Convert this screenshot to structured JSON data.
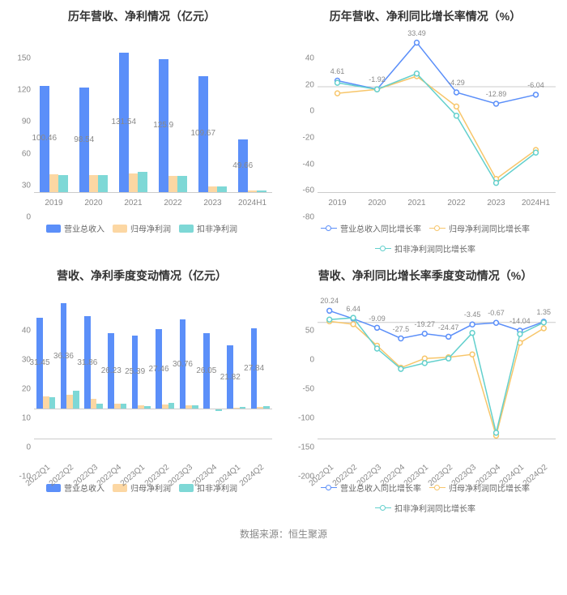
{
  "colors": {
    "blue": "#5b8ff9",
    "orange": "#fcd7a3",
    "teal": "#7ed8d6",
    "line_blue": "#5b8ff9",
    "line_orange": "#f7c66b",
    "line_teal": "#63d0cd",
    "grid": "#eeeeee",
    "axis": "#cccccc",
    "text_muted": "#888888"
  },
  "footer": "数据来源：恒生聚源",
  "chart1": {
    "type": "bar",
    "title": "历年营收、净利情况（亿元）",
    "ylim": [
      0,
      150
    ],
    "ytick_step": 30,
    "categories": [
      "2019",
      "2020",
      "2021",
      "2022",
      "2023",
      "2024H1"
    ],
    "series": [
      {
        "name": "营业总收入",
        "color": "#5b8ff9",
        "values": [
          100.46,
          98.54,
          131.54,
          125.9,
          109.67,
          49.66
        ]
      },
      {
        "name": "归母净利润",
        "color": "#fcd7a3",
        "values": [
          16.5,
          16.2,
          17.5,
          15.0,
          5.0,
          1.3
        ]
      },
      {
        "name": "扣非净利润",
        "color": "#7ed8d6",
        "values": [
          16.0,
          16.0,
          19.0,
          15.0,
          5.0,
          1.2
        ]
      }
    ],
    "value_labels": [
      100.46,
      98.54,
      131.54,
      125.9,
      109.67,
      49.66
    ],
    "value_label_pos": "mid",
    "bar_group_width": 0.72
  },
  "chart2": {
    "type": "line",
    "title": "历年营收、净利同比增长率情况（%）",
    "ylim": [
      -80,
      40
    ],
    "ytick_step": 20,
    "categories": [
      "2019",
      "2020",
      "2021",
      "2022",
      "2023",
      "2024H1"
    ],
    "series": [
      {
        "name": "营业总收入同比增长率",
        "color": "#5b8ff9",
        "values": [
          4.61,
          -1.92,
          33.49,
          -4.29,
          -12.89,
          -6.04
        ],
        "labels": [
          4.61,
          -1.92,
          33.49,
          -4.29,
          -12.89,
          -6.04
        ]
      },
      {
        "name": "归母净利润同比增长率",
        "color": "#f7c66b",
        "values": [
          -5,
          -2,
          8,
          -15,
          -70,
          -48
        ]
      },
      {
        "name": "扣非净利润同比增长率",
        "color": "#63d0cd",
        "values": [
          3,
          -2,
          10,
          -22,
          -73,
          -50
        ]
      }
    ]
  },
  "chart3": {
    "type": "bar",
    "title": "营收、净利季度变动情况（亿元）",
    "ylim": [
      -10,
      40
    ],
    "ytick_step": 10,
    "categories": [
      "2022Q1",
      "2022Q2",
      "2022Q3",
      "2022Q4",
      "2023Q1",
      "2023Q2",
      "2023Q3",
      "2023Q4",
      "2024Q1",
      "2024Q2"
    ],
    "rotate_x": true,
    "series": [
      {
        "name": "营业总收入",
        "color": "#5b8ff9",
        "values": [
          31.45,
          36.36,
          31.86,
          26.23,
          25.39,
          27.46,
          30.76,
          26.05,
          21.82,
          27.84
        ]
      },
      {
        "name": "归母净利润",
        "color": "#fcd7a3",
        "values": [
          4.5,
          5.0,
          3.5,
          2.0,
          1.5,
          1.8,
          1.5,
          0.2,
          0.5,
          0.8
        ]
      },
      {
        "name": "扣非净利润",
        "color": "#7ed8d6",
        "values": [
          4.2,
          6.5,
          2.0,
          2.0,
          1.2,
          2.2,
          1.5,
          -0.5,
          0.8,
          1.2
        ]
      }
    ],
    "value_labels": [
      31.45,
      36.36,
      31.86,
      26.23,
      25.39,
      27.46,
      30.76,
      26.05,
      21.82,
      27.84
    ],
    "value_label_pos": "mid",
    "bar_group_width": 0.78
  },
  "chart4": {
    "type": "line",
    "title": "营收、净利同比增长率季度变动情况（%）",
    "ylim": [
      -200,
      50
    ],
    "ytick_step": 50,
    "categories": [
      "2022Q1",
      "2022Q2",
      "2022Q3",
      "2022Q4",
      "2023Q1",
      "2023Q2",
      "2023Q3",
      "2023Q4",
      "2024Q1",
      "2024Q2"
    ],
    "rotate_x": true,
    "series": [
      {
        "name": "营业总收入同比增长率",
        "color": "#5b8ff9",
        "values": [
          20.24,
          6.44,
          -9.09,
          -27.5,
          -19.27,
          -24.47,
          -3.45,
          -0.67,
          -14.04,
          1.35
        ],
        "labels": [
          20.24,
          6.44,
          -9.09,
          -27.5,
          -19.27,
          -24.47,
          -3.45,
          -0.67,
          -14.04,
          1.35
        ]
      },
      {
        "name": "归母净利润同比增长率",
        "color": "#f7c66b",
        "values": [
          2,
          -3,
          -40,
          -78,
          -62,
          -60,
          -55,
          -195,
          -35,
          -10
        ]
      },
      {
        "name": "扣非净利润同比增长率",
        "color": "#63d0cd",
        "values": [
          5,
          8,
          -45,
          -80,
          -70,
          -62,
          -18,
          -190,
          -20,
          0
        ]
      }
    ]
  }
}
